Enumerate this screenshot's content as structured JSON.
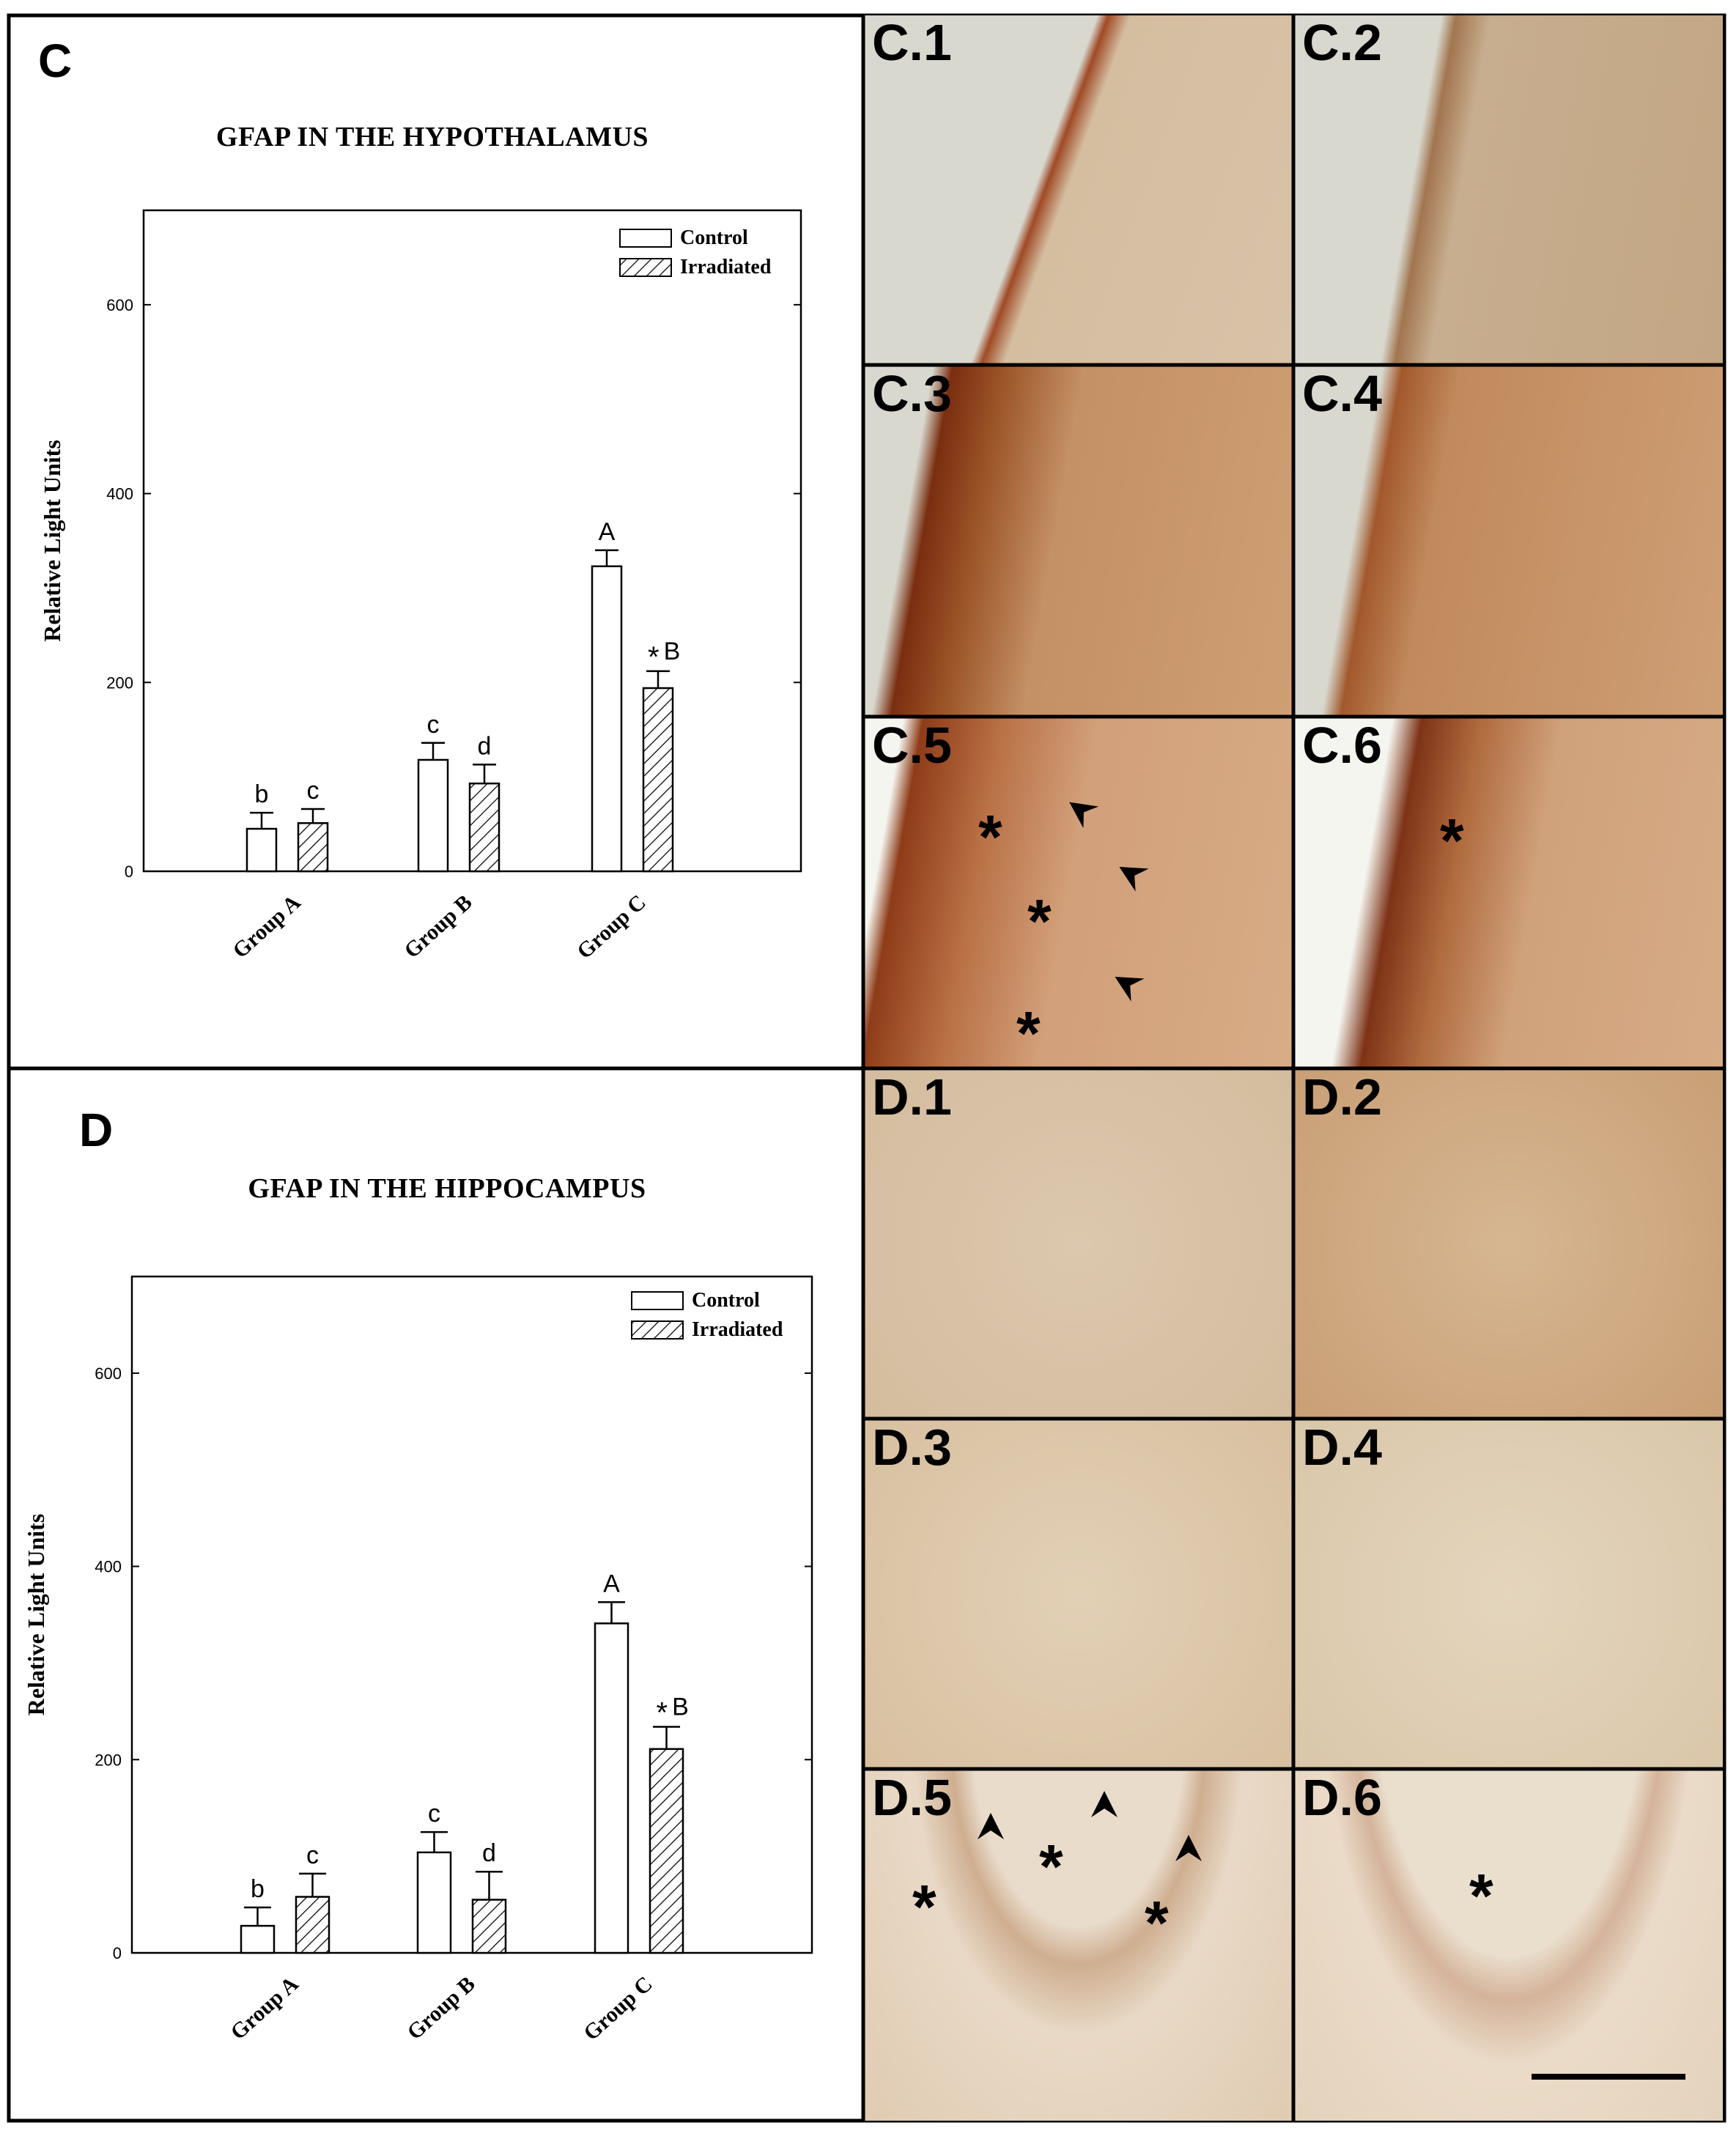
{
  "panels": {
    "C": {
      "letter": "C",
      "title": "GFAP IN THE HYPOTHALAMUS"
    },
    "D": {
      "letter": "D",
      "title": "GFAP IN THE HIPPOCAMPUS"
    }
  },
  "chart_data": [
    {
      "type": "bar",
      "title": "GFAP IN THE HYPOTHALAMUS",
      "xlabel": "",
      "ylabel": "Relative Light Units",
      "ylim": [
        0,
        700
      ],
      "yticks": [
        0,
        200,
        400,
        600
      ],
      "categories": [
        "Group A",
        "Group B",
        "Group C"
      ],
      "series": [
        {
          "name": "Control",
          "pattern": "solid-white",
          "values": [
            45,
            118,
            323
          ],
          "errors": [
            17,
            18,
            17
          ],
          "labels": [
            "b",
            "c",
            "A"
          ]
        },
        {
          "name": "Irradiated",
          "pattern": "hatched",
          "values": [
            51,
            93,
            194
          ],
          "errors": [
            15,
            20,
            18
          ],
          "labels": [
            "c",
            "d",
            "*B"
          ]
        }
      ],
      "legend": "top-right",
      "grid": false
    },
    {
      "type": "bar",
      "title": "GFAP IN THE HIPPOCAMPUS",
      "xlabel": "",
      "ylabel": "Relative Light Units",
      "ylim": [
        0,
        700
      ],
      "yticks": [
        0,
        200,
        400,
        600
      ],
      "categories": [
        "Group A",
        "Group B",
        "Group C"
      ],
      "series": [
        {
          "name": "Control",
          "pattern": "solid-white",
          "values": [
            28,
            104,
            341
          ],
          "errors": [
            19,
            21,
            22
          ],
          "labels": [
            "b",
            "c",
            "A"
          ]
        },
        {
          "name": "Irradiated",
          "pattern": "hatched",
          "values": [
            58,
            55,
            211
          ],
          "errors": [
            24,
            29,
            23
          ],
          "labels": [
            "c",
            "d",
            "*B"
          ]
        }
      ],
      "legend": "top-right",
      "grid": false
    }
  ],
  "micrographs": [
    {
      "label": "C.1"
    },
    {
      "label": "C.2"
    },
    {
      "label": "C.3"
    },
    {
      "label": "C.4"
    },
    {
      "label": "C.5"
    },
    {
      "label": "C.6"
    },
    {
      "label": "D.1"
    },
    {
      "label": "D.2"
    },
    {
      "label": "D.3"
    },
    {
      "label": "D.4"
    },
    {
      "label": "D.5"
    },
    {
      "label": "D.6"
    }
  ],
  "markers": {
    "asterisk": "*"
  },
  "colors": {
    "tissue_light": "#e6d3b8",
    "tissue_mid": "#d2a47a",
    "tissue_dark": "#8a3f1e",
    "background_slide": "#d8d8cf",
    "white_space": "#f5f5f0"
  }
}
